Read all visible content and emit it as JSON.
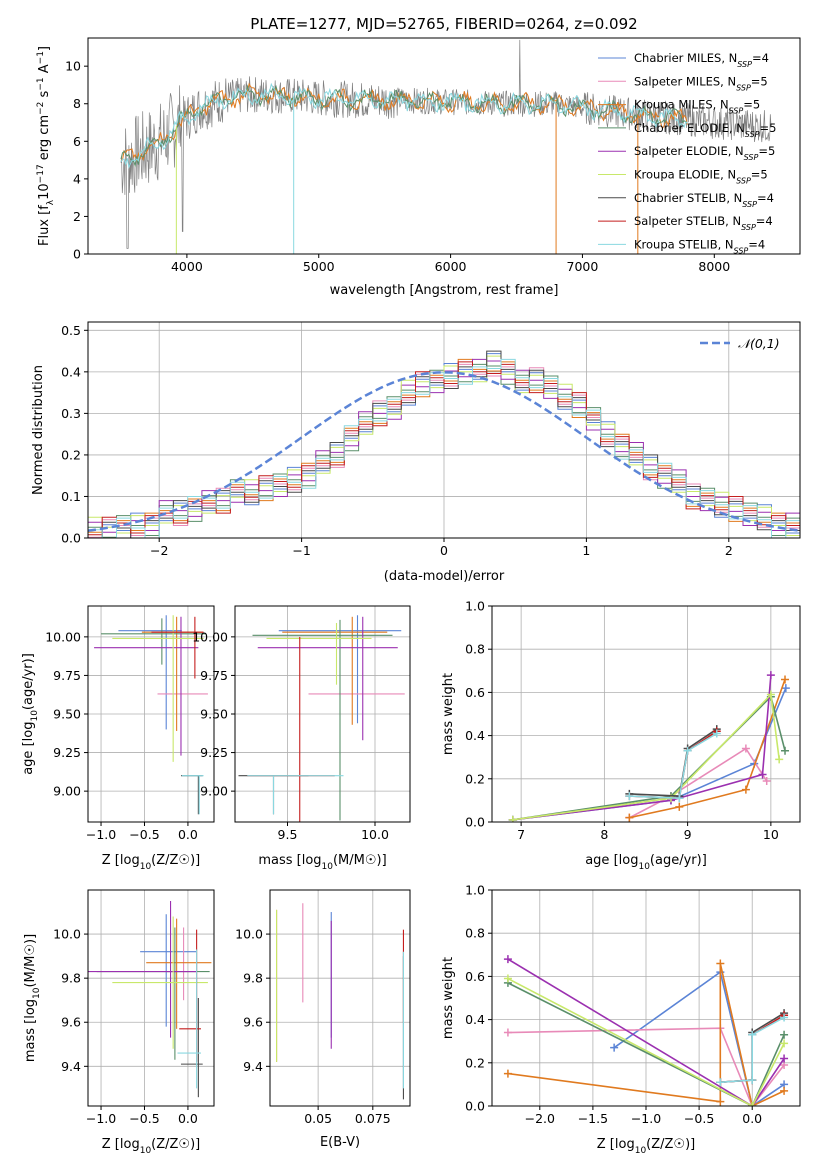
{
  "figure": {
    "title": "PLATE=1277, MJD=52765, FIBERID=0264, z=0.092"
  },
  "colors": {
    "Chabrier MILES": "#5b84d6",
    "Salpeter MILES": "#e88ab8",
    "Kroupa MILES": "#e07a1f",
    "Chabrier ELODIE": "#5a8f6a",
    "Salpeter ELODIE": "#9b30b0",
    "Kroupa ELODIE": "#c8e86a",
    "Chabrier STELIB": "#4a4a4a",
    "Salpeter STELIB": "#c41e1e",
    "Kroupa STELIB": "#8ad8e0",
    "gaussian": "#5b84d6",
    "spectrum": "#808080"
  },
  "chart_data": [
    {
      "id": "spectrum",
      "type": "line",
      "xlabel": "wavelength [Angstrom, rest frame]",
      "ylabel": "Flux [f_λ 10^-17 erg cm^-2 s^-1 A^-1]",
      "xlim": [
        3250,
        8650
      ],
      "ylim": [
        0,
        11.5
      ],
      "xticks": [
        4000,
        5000,
        6000,
        7000,
        8000
      ],
      "yticks": [
        0,
        2,
        4,
        6,
        8,
        10
      ],
      "legend_position": "top-right",
      "legend": [
        {
          "model": "Chabrier MILES",
          "n": "4"
        },
        {
          "model": "Salpeter MILES",
          "n": "5"
        },
        {
          "model": "Kroupa MILES",
          "n": "5"
        },
        {
          "model": "Chabrier ELODIE",
          "n": "5"
        },
        {
          "model": "Salpeter ELODIE",
          "n": "5"
        },
        {
          "model": "Kroupa ELODIE",
          "n": "5"
        },
        {
          "model": "Chabrier STELIB",
          "n": "4"
        },
        {
          "model": "Salpeter STELIB",
          "n": "4"
        },
        {
          "model": "Kroupa STELIB",
          "n": "4"
        }
      ],
      "continuum": {
        "x": [
          3500,
          3650,
          3800,
          3950,
          4100,
          4300,
          4500,
          4800,
          5000,
          5300,
          5600,
          6000,
          6400,
          6800,
          7200,
          7600,
          8000,
          8400
        ],
        "y": [
          4.9,
          5.4,
          6.0,
          7.0,
          7.8,
          8.3,
          8.5,
          8.4,
          8.3,
          8.2,
          8.2,
          8.1,
          8.0,
          8.0,
          7.6,
          7.3,
          7.0,
          6.8
        ]
      }
    },
    {
      "id": "residuals",
      "type": "bar",
      "xlabel": "(data-model)/error",
      "ylabel": "Normed distribution",
      "xlim": [
        -2.5,
        2.5
      ],
      "ylim": [
        0,
        0.52
      ],
      "xticks": [
        -2,
        -1,
        0,
        1,
        2
      ],
      "yticks": [
        0.0,
        0.1,
        0.2,
        0.3,
        0.4,
        0.5
      ],
      "legend_position": "top-right",
      "gaussian_label": "N(0,1)",
      "bin_edges_start": -2.5,
      "bin_width": 0.1,
      "values": [
        0.02,
        0.02,
        0.03,
        0.03,
        0.03,
        0.06,
        0.06,
        0.07,
        0.09,
        0.09,
        0.11,
        0.11,
        0.12,
        0.13,
        0.14,
        0.15,
        0.18,
        0.2,
        0.24,
        0.28,
        0.3,
        0.31,
        0.35,
        0.37,
        0.38,
        0.39,
        0.4,
        0.4,
        0.42,
        0.4,
        0.38,
        0.38,
        0.36,
        0.34,
        0.32,
        0.29,
        0.25,
        0.22,
        0.2,
        0.17,
        0.15,
        0.14,
        0.1,
        0.09,
        0.08,
        0.07,
        0.06,
        0.05,
        0.03,
        0.03
      ]
    },
    {
      "id": "age-vs-Z",
      "type": "scatter",
      "xlabel": "Z [log10(Z/Z☉)]",
      "ylabel": "age  [log10(age/yr)]",
      "xlim": [
        -1.15,
        0.3
      ],
      "ylim": [
        8.8,
        10.2
      ],
      "xticks": [
        -1.0,
        -0.5,
        0.0
      ],
      "yticks": [
        9.0,
        9.25,
        9.5,
        9.75,
        10.0
      ],
      "points": [
        {
          "model": "Chabrier MILES",
          "x": -0.25,
          "y": 10.04,
          "xerr": [
            0.55,
            0.18
          ],
          "yerr": [
            0.64,
            0.1
          ]
        },
        {
          "model": "Salpeter MILES",
          "x": -0.05,
          "y": 9.63,
          "xerr": [
            0.3,
            0.28
          ],
          "yerr": [
            0.0,
            0.0
          ]
        },
        {
          "model": "Kroupa MILES",
          "x": -0.13,
          "y": 10.03,
          "xerr": [
            0.4,
            0.3
          ],
          "yerr": [
            0.64,
            0.1
          ]
        },
        {
          "model": "Chabrier ELODIE",
          "x": -0.3,
          "y": 10.02,
          "xerr": [
            0.7,
            0.5
          ],
          "yerr": [
            0.2,
            0.1
          ]
        },
        {
          "model": "Salpeter ELODIE",
          "x": -0.08,
          "y": 9.93,
          "xerr": [
            1.0,
            0.2
          ],
          "yerr": [
            0.7,
            0.2
          ]
        },
        {
          "model": "Kroupa ELODIE",
          "x": -0.17,
          "y": 9.99,
          "xerr": [
            0.7,
            0.35
          ],
          "yerr": [
            0.8,
            0.15
          ]
        },
        {
          "model": "Chabrier STELIB",
          "x": 0.12,
          "y": 9.1,
          "xerr": [
            0.2,
            0.05
          ],
          "yerr": [
            0.25,
            0.0
          ]
        },
        {
          "model": "Salpeter STELIB",
          "x": 0.08,
          "y": 10.03,
          "xerr": [
            0.5,
            0.1
          ],
          "yerr": [
            0.3,
            0.1
          ]
        },
        {
          "model": "Kroupa STELIB",
          "x": 0.13,
          "y": 9.1,
          "xerr": [
            0.2,
            0.05
          ],
          "yerr": [
            0.25,
            0.0
          ]
        }
      ]
    },
    {
      "id": "age-vs-mass",
      "type": "scatter",
      "xlabel": "mass [log10(M/M☉)]",
      "ylabel": "",
      "xlim": [
        9.2,
        10.2
      ],
      "ylim": [
        8.8,
        10.2
      ],
      "xticks": [
        9.5,
        10.0
      ],
      "yticks": [
        9.0,
        9.25,
        9.5,
        9.75,
        10.0
      ],
      "points": [
        {
          "model": "Chabrier MILES",
          "x": 9.9,
          "y": 10.04,
          "xerr": [
            0.45,
            0.25
          ],
          "yerr": [
            0.6,
            0.1
          ]
        },
        {
          "model": "Salpeter MILES",
          "x": 9.97,
          "y": 9.63,
          "xerr": [
            0.35,
            0.2
          ],
          "yerr": [
            0.0,
            0.0
          ]
        },
        {
          "model": "Kroupa MILES",
          "x": 9.87,
          "y": 10.03,
          "xerr": [
            0.4,
            0.2
          ],
          "yerr": [
            0.6,
            0.1
          ]
        },
        {
          "model": "Chabrier ELODIE",
          "x": 9.8,
          "y": 10.01,
          "xerr": [
            0.5,
            0.3
          ],
          "yerr": [
            1.2,
            0.1
          ]
        },
        {
          "model": "Salpeter ELODIE",
          "x": 9.93,
          "y": 9.93,
          "xerr": [
            0.6,
            0.2
          ],
          "yerr": [
            0.6,
            0.2
          ]
        },
        {
          "model": "Kroupa ELODIE",
          "x": 9.78,
          "y": 9.99,
          "xerr": [
            0.4,
            0.2
          ],
          "yerr": [
            0.3,
            0.1
          ]
        },
        {
          "model": "Chabrier STELIB",
          "x": 9.42,
          "y": 9.1,
          "xerr": [
            0.2,
            0.2
          ],
          "yerr": [
            0.25,
            0.0
          ]
        },
        {
          "model": "Salpeter STELIB",
          "x": 9.57,
          "y": 9.1,
          "xerr": [
            0.3,
            0.2
          ],
          "yerr": [
            0.5,
            0.9
          ]
        },
        {
          "model": "Kroupa STELIB",
          "x": 9.42,
          "y": 9.1,
          "xerr": [
            0.15,
            0.4
          ],
          "yerr": [
            0.25,
            0.0
          ]
        }
      ]
    },
    {
      "id": "mass-weight-vs-age",
      "type": "line",
      "xlabel": "age  [log10(age/yr)]",
      "ylabel": "mass weight",
      "xlim": [
        6.65,
        10.35
      ],
      "ylim": [
        0,
        1.0
      ],
      "xticks": [
        7,
        8,
        9,
        10
      ],
      "yticks": [
        0.0,
        0.2,
        0.4,
        0.6,
        0.8,
        1.0
      ],
      "series": [
        {
          "model": "Chabrier MILES",
          "x": [
            6.9,
            8.8,
            9.8,
            10.18
          ],
          "y": [
            0.01,
            0.1,
            0.27,
            0.62
          ]
        },
        {
          "model": "Salpeter MILES",
          "x": [
            8.3,
            8.8,
            9.7,
            9.95
          ],
          "y": [
            0.02,
            0.12,
            0.34,
            0.19
          ]
        },
        {
          "model": "Kroupa MILES",
          "x": [
            8.3,
            8.9,
            9.7,
            10.17
          ],
          "y": [
            0.02,
            0.07,
            0.15,
            0.66
          ]
        },
        {
          "model": "Chabrier ELODIE",
          "x": [
            6.9,
            8.8,
            10.0,
            10.17
          ],
          "y": [
            0.01,
            0.12,
            0.58,
            0.33
          ]
        },
        {
          "model": "Salpeter ELODIE",
          "x": [
            6.9,
            8.8,
            9.9,
            10.0
          ],
          "y": [
            0.01,
            0.1,
            0.22,
            0.68
          ]
        },
        {
          "model": "Kroupa ELODIE",
          "x": [
            6.9,
            8.8,
            10.0,
            10.1
          ],
          "y": [
            0.01,
            0.11,
            0.59,
            0.29
          ]
        },
        {
          "model": "Chabrier STELIB",
          "x": [
            8.3,
            8.9,
            9.0,
            9.35
          ],
          "y": [
            0.13,
            0.12,
            0.34,
            0.43
          ]
        },
        {
          "model": "Salpeter STELIB",
          "x": [
            8.3,
            8.9,
            9.0,
            9.35
          ],
          "y": [
            0.12,
            0.11,
            0.33,
            0.42
          ]
        },
        {
          "model": "Kroupa STELIB",
          "x": [
            8.3,
            8.9,
            9.0,
            9.35
          ],
          "y": [
            0.12,
            0.11,
            0.33,
            0.41
          ]
        }
      ]
    },
    {
      "id": "mass-vs-Z",
      "type": "scatter",
      "xlabel": "Z [log10(Z/Z☉)]",
      "ylabel": "mass [log10(M/M☉)]",
      "xlim": [
        -1.15,
        0.3
      ],
      "ylim": [
        9.22,
        10.2
      ],
      "xticks": [
        -1.0,
        -0.5,
        0.0
      ],
      "yticks": [
        9.4,
        9.6,
        9.8,
        10.0
      ],
      "points": [
        {
          "model": "Chabrier MILES",
          "x": -0.25,
          "y": 9.92,
          "xerr": [
            0.3,
            0.35
          ],
          "yerr": [
            0.34,
            0.17
          ]
        },
        {
          "model": "Salpeter MILES",
          "x": -0.05,
          "y": 9.83,
          "xerr": [
            0.2,
            0.15
          ],
          "yerr": [
            0.13,
            0.2
          ]
        },
        {
          "model": "Kroupa MILES",
          "x": -0.13,
          "y": 9.87,
          "xerr": [
            0.35,
            0.4
          ],
          "yerr": [
            0.3,
            0.2
          ]
        },
        {
          "model": "Chabrier ELODIE",
          "x": -0.15,
          "y": 9.83,
          "xerr": [
            0.9,
            0.4
          ],
          "yerr": [
            0.4,
            0.2
          ]
        },
        {
          "model": "Salpeter ELODIE",
          "x": -0.2,
          "y": 9.83,
          "xerr": [
            0.95,
            0.3
          ],
          "yerr": [
            0.3,
            0.32
          ]
        },
        {
          "model": "Kroupa ELODIE",
          "x": -0.17,
          "y": 9.78,
          "xerr": [
            0.7,
            0.4
          ],
          "yerr": [
            0.3,
            0.3
          ]
        },
        {
          "model": "Chabrier STELIB",
          "x": 0.12,
          "y": 9.41,
          "xerr": [
            0.2,
            0.05
          ],
          "yerr": [
            0.15,
            0.3
          ]
        },
        {
          "model": "Salpeter STELIB",
          "x": 0.1,
          "y": 9.57,
          "xerr": [
            0.2,
            0.05
          ],
          "yerr": [
            0.15,
            0.45
          ]
        },
        {
          "model": "Kroupa STELIB",
          "x": 0.1,
          "y": 9.46,
          "xerr": [
            0.22,
            0.05
          ],
          "yerr": [
            0.16,
            0.47
          ]
        }
      ]
    },
    {
      "id": "mass-vs-EBV",
      "type": "scatter",
      "xlabel": "E(B-V)",
      "ylabel": "",
      "xlim": [
        0.028,
        0.092
      ],
      "ylim": [
        9.22,
        10.2
      ],
      "xticks": [
        0.05,
        0.075
      ],
      "points": [
        {
          "model": "Chabrier MILES",
          "x": 0.056,
          "y": 9.83,
          "yerr": [
            0.3,
            0.27
          ]
        },
        {
          "model": "Salpeter MILES",
          "x": 0.043,
          "y": 9.92,
          "yerr": [
            0.23,
            0.22
          ]
        },
        {
          "model": "Kroupa MILES",
          "x": 0.031,
          "y": 9.78,
          "yerr": [
            0.36,
            0.33
          ]
        },
        {
          "model": "Salpeter ELODIE",
          "x": 0.056,
          "y": 9.76,
          "yerr": [
            0.28,
            0.3
          ]
        },
        {
          "model": "Kroupa ELODIE",
          "x": 0.031,
          "y": 9.78,
          "yerr": [
            0.36,
            0.33
          ]
        },
        {
          "model": "Chabrier STELIB",
          "x": 0.089,
          "y": 9.6,
          "yerr": [
            0.35,
            0.3
          ]
        },
        {
          "model": "Salpeter STELIB",
          "x": 0.089,
          "y": 9.83,
          "yerr": [
            0.23,
            0.19
          ]
        },
        {
          "model": "Kroupa STELIB",
          "x": 0.089,
          "y": 9.6,
          "yerr": [
            0.3,
            0.32
          ]
        }
      ]
    },
    {
      "id": "mass-weight-vs-Z",
      "type": "line",
      "xlabel": "Z [log10(Z/Z☉)]",
      "ylabel": "mass weight",
      "xlim": [
        -2.45,
        0.45
      ],
      "ylim": [
        0,
        1.0
      ],
      "xticks": [
        -2.0,
        -1.5,
        -1.0,
        -0.5,
        0.0
      ],
      "yticks": [
        0.0,
        0.2,
        0.4,
        0.6,
        0.8,
        1.0
      ],
      "series": [
        {
          "model": "Chabrier MILES",
          "x": [
            -1.3,
            -0.3,
            0.0,
            0.3
          ],
          "y": [
            0.27,
            0.62,
            0.0,
            0.1
          ]
        },
        {
          "model": "Salpeter MILES",
          "x": [
            -2.3,
            -0.3,
            0.0,
            0.3
          ],
          "y": [
            0.34,
            0.36,
            0.0,
            0.19
          ]
        },
        {
          "model": "Kroupa MILES",
          "x": [
            -2.3,
            -0.3,
            -0.3,
            0.0,
            0.3
          ],
          "y": [
            0.15,
            0.02,
            0.66,
            0.0,
            0.07
          ]
        },
        {
          "model": "Chabrier ELODIE",
          "x": [
            -2.3,
            0.0,
            0.3
          ],
          "y": [
            0.57,
            0.0,
            0.33
          ]
        },
        {
          "model": "Salpeter ELODIE",
          "x": [
            -2.3,
            0.0,
            0.3
          ],
          "y": [
            0.68,
            0.0,
            0.22
          ]
        },
        {
          "model": "Kroupa ELODIE",
          "x": [
            -2.3,
            0.0,
            0.3
          ],
          "y": [
            0.59,
            0.0,
            0.29
          ]
        },
        {
          "model": "Chabrier STELIB",
          "x": [
            -0.3,
            0.0,
            0.0,
            0.3
          ],
          "y": [
            0.11,
            0.12,
            0.34,
            0.43
          ]
        },
        {
          "model": "Salpeter STELIB",
          "x": [
            -0.3,
            0.0,
            0.0,
            0.3
          ],
          "y": [
            0.11,
            0.12,
            0.33,
            0.42
          ]
        },
        {
          "model": "Kroupa STELIB",
          "x": [
            -0.3,
            0.0,
            0.0,
            0.3
          ],
          "y": [
            0.11,
            0.12,
            0.33,
            0.41
          ]
        }
      ]
    }
  ]
}
